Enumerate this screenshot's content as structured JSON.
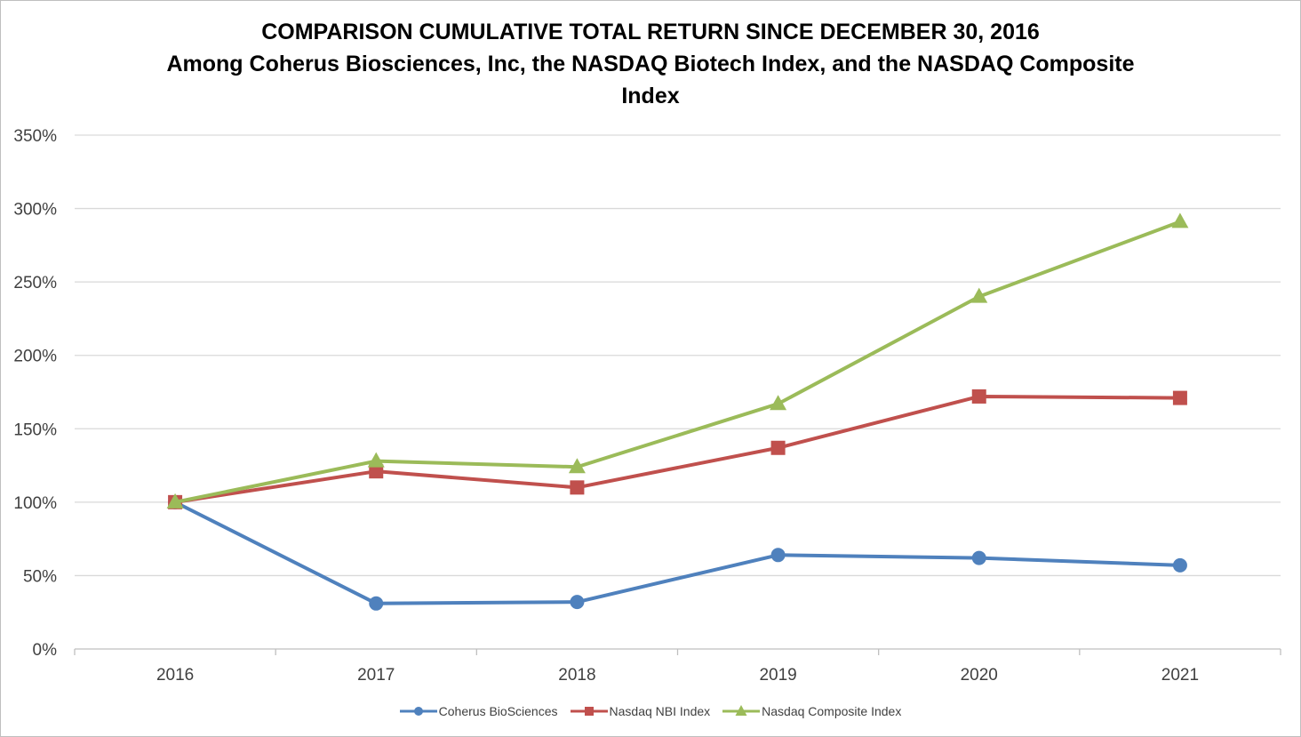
{
  "chart_data": {
    "type": "line",
    "title_lines": [
      "COMPARISON CUMULATIVE TOTAL RETURN SINCE DECEMBER 30, 2016",
      "Among Coherus Biosciences, Inc, the NASDAQ Biotech Index, and the NASDAQ Composite",
      "Index"
    ],
    "xlabel": "",
    "ylabel": "",
    "categories": [
      "2016",
      "2017",
      "2018",
      "2019",
      "2020",
      "2021"
    ],
    "ylim": [
      0,
      350
    ],
    "yticks": [
      0,
      50,
      100,
      150,
      200,
      250,
      300,
      350
    ],
    "ytick_labels": [
      "0%",
      "50%",
      "100%",
      "150%",
      "200%",
      "250%",
      "300%",
      "350%"
    ],
    "grid": true,
    "legend_position": "bottom",
    "series": [
      {
        "name": "Coherus BioSciences",
        "color": "#4f81bd",
        "marker": "circle",
        "values": [
          100,
          31,
          32,
          64,
          62,
          57
        ]
      },
      {
        "name": "Nasdaq NBI Index",
        "color": "#c0504d",
        "marker": "square",
        "values": [
          100,
          121,
          110,
          137,
          172,
          171
        ]
      },
      {
        "name": "Nasdaq Composite Index",
        "color": "#9bbb59",
        "marker": "triangle",
        "values": [
          100,
          128,
          124,
          167,
          240,
          291
        ]
      }
    ]
  }
}
